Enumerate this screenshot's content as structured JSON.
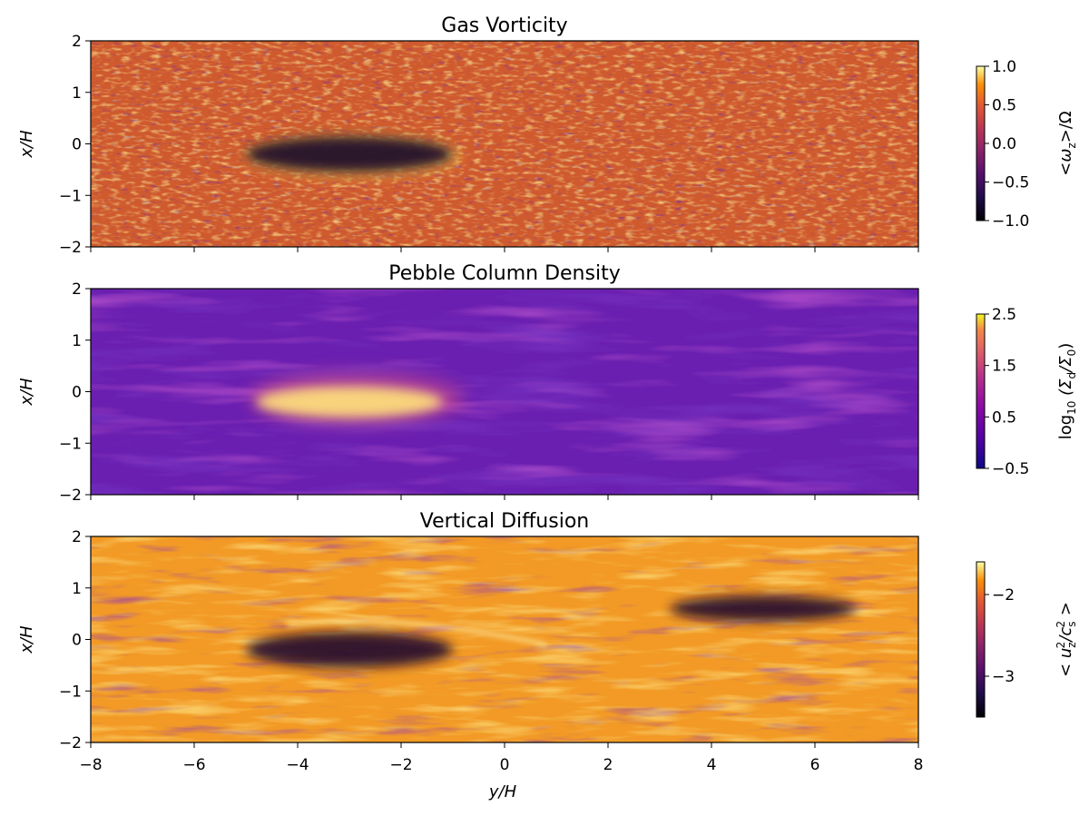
{
  "chart_data": [
    {
      "type": "heatmap",
      "title": "Gas Vorticity",
      "ylabel": "x/H",
      "xlabel": "",
      "xlim": [
        -8,
        8
      ],
      "ylim": [
        -2,
        2
      ],
      "yticks": [
        "2",
        "1",
        "0",
        "−1",
        "−2"
      ],
      "yticks_values": [
        2,
        1,
        0,
        -1,
        -2
      ],
      "colormap": "inferno-like",
      "colorbar": {
        "label_parts": [
          "<",
          "ω",
          "z",
          ">/Ω"
        ],
        "range": [
          -1.0,
          1.0
        ],
        "ticks": [
          "1.0",
          "0.5",
          "0.0",
          "−0.5",
          "−1.0"
        ],
        "ticks_values": [
          1.0,
          0.5,
          0.0,
          -0.5,
          -1.0
        ]
      },
      "features": [
        {
          "type": "vortex",
          "center": [
            -3,
            -0.2
          ],
          "semi_axes": [
            2.0,
            0.35
          ],
          "value": -1.0
        }
      ],
      "background_value": 0.3
    },
    {
      "type": "heatmap",
      "title": "Pebble Column Density",
      "ylabel": "x/H",
      "xlabel": "",
      "xlim": [
        -8,
        8
      ],
      "ylim": [
        -2,
        2
      ],
      "yticks": [
        "2",
        "1",
        "0",
        "−1",
        "−2"
      ],
      "yticks_values": [
        2,
        1,
        0,
        -1,
        -2
      ],
      "colormap": "plasma-like",
      "colorbar": {
        "label_parts": [
          "log",
          "10",
          " (Σ",
          "d",
          "/Σ",
          "0",
          ")"
        ],
        "range": [
          -0.5,
          2.5
        ],
        "ticks": [
          "2.5",
          "1.5",
          "0.5",
          "−0.5"
        ],
        "ticks_values": [
          2.5,
          1.5,
          0.5,
          -0.5
        ]
      },
      "features": [
        {
          "type": "pebble-concentration",
          "center": [
            -3,
            -0.2
          ],
          "semi_axes": [
            1.8,
            0.3
          ],
          "value": 2.5
        }
      ],
      "background_value": 0.0
    },
    {
      "type": "heatmap",
      "title": "Vertical Diffusion",
      "ylabel": "x/H",
      "xlabel": "y/H",
      "xlim": [
        -8,
        8
      ],
      "ylim": [
        -2,
        2
      ],
      "xticks": [
        "−8",
        "−6",
        "−4",
        "−2",
        "0",
        "2",
        "4",
        "6",
        "8"
      ],
      "xticks_values": [
        -8,
        -6,
        -4,
        -2,
        0,
        2,
        4,
        6,
        8
      ],
      "yticks": [
        "2",
        "1",
        "0",
        "−1",
        "−2"
      ],
      "yticks_values": [
        2,
        1,
        0,
        -1,
        -2
      ],
      "colormap": "inferno-like",
      "colorbar": {
        "label_parts": [
          "< u",
          "z",
          "2",
          "/c",
          "s",
          "2",
          " >"
        ],
        "range": [
          -3.5,
          -1.6
        ],
        "ticks": [
          "−2",
          "−3"
        ],
        "ticks_values": [
          -2,
          -3
        ]
      },
      "features": [
        {
          "type": "vortex",
          "center": [
            -3,
            -0.2
          ],
          "semi_axes": [
            2.0,
            0.35
          ],
          "value": -3.5
        },
        {
          "type": "low-region",
          "center": [
            5,
            0.6
          ],
          "semi_axes": [
            1.8,
            0.25
          ],
          "value": -3.0
        }
      ],
      "background_value": -2.0
    }
  ]
}
